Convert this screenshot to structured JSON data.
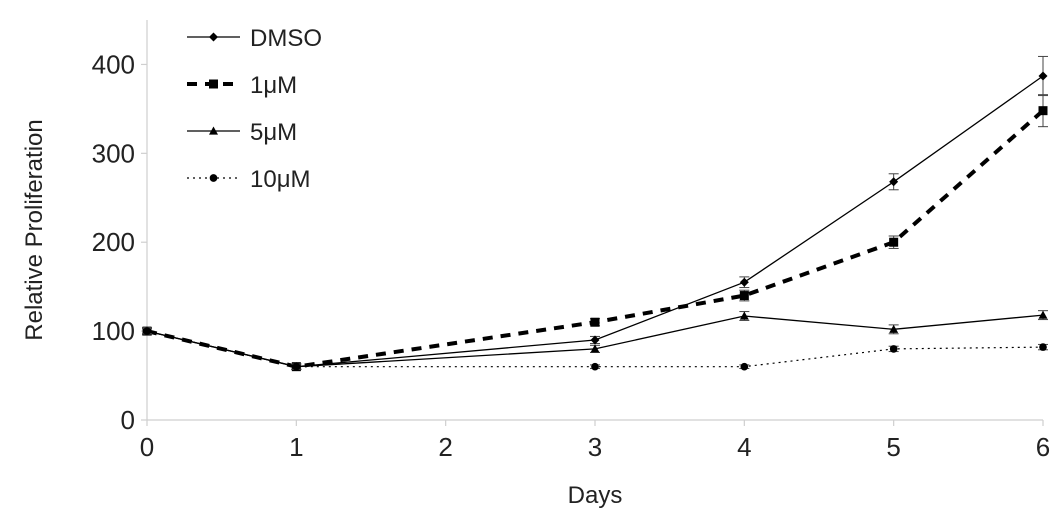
{
  "chart_data": {
    "type": "line",
    "xlabel": "Days",
    "ylabel": "Relative Proliferation",
    "xlim": [
      0,
      6
    ],
    "ylim": [
      0,
      450
    ],
    "xticks": [
      0,
      1,
      2,
      3,
      4,
      5,
      6
    ],
    "yticks": [
      0,
      100,
      200,
      300,
      400
    ],
    "grid": false,
    "legend_position": "top-left",
    "series": [
      {
        "name": "DMSO",
        "x": [
          0,
          1,
          3,
          4,
          5,
          6
        ],
        "y": [
          100,
          60,
          90,
          155,
          268,
          387
        ],
        "err": [
          4,
          3,
          4,
          6,
          9,
          22
        ],
        "line": "solid",
        "marker": "diamond",
        "color": "#000000"
      },
      {
        "name": "1μM",
        "x": [
          0,
          1,
          3,
          4,
          5,
          6
        ],
        "y": [
          100,
          60,
          110,
          140,
          200,
          348
        ],
        "err": [
          4,
          3,
          4,
          6,
          7,
          18
        ],
        "line": "dashed",
        "marker": "square",
        "color": "#000000"
      },
      {
        "name": "5μM",
        "x": [
          0,
          1,
          3,
          4,
          5,
          6
        ],
        "y": [
          100,
          60,
          80,
          117,
          102,
          118
        ],
        "err": [
          4,
          3,
          4,
          5,
          5,
          5
        ],
        "line": "solid",
        "marker": "triangle",
        "color": "#000000"
      },
      {
        "name": "10μM",
        "x": [
          0,
          1,
          3,
          4,
          5,
          6
        ],
        "y": [
          100,
          60,
          60,
          60,
          80,
          82
        ],
        "err": [
          3,
          3,
          2,
          2,
          3,
          3
        ],
        "line": "dotted",
        "marker": "circle",
        "color": "#000000"
      }
    ]
  }
}
